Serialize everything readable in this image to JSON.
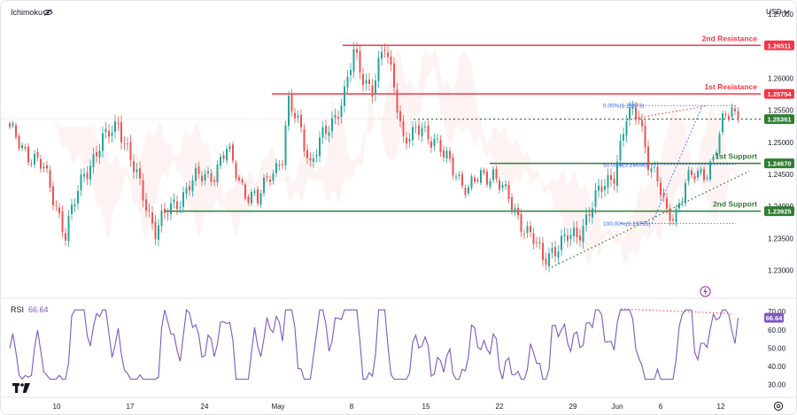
{
  "header": {
    "indicator": "Ichimoku",
    "currency": "USD"
  },
  "rsi_panel": {
    "name": "RSI",
    "value": "66.64",
    "value_badge": "66.64",
    "color": "#7e57c2"
  },
  "annotations": {
    "second_resistance": "2nd Resistance",
    "first_resistance": "1st Resistance",
    "first_support": "1st Support",
    "second_support": "2nd Support",
    "fib_0": "0.00%(1.25573)",
    "fib_50": "50.00%(1.24654)",
    "fib_100": "100.00%(1.23735)"
  },
  "colors": {
    "up": "#26a69a",
    "down": "#ef5350",
    "resistance": "#f23645",
    "support": "#2e7d32",
    "fib": "#2962ff",
    "rsi": "#7e57c2"
  },
  "chart_data": [
    {
      "type": "candlestick",
      "instrument_hint": "EUR/USD-like FX pair (not labeled)",
      "x_axis_labels": [
        "10",
        "17",
        "24",
        "May",
        "8",
        "15",
        "22",
        "29",
        "Jun",
        "6",
        "12"
      ],
      "y_axis_ticks": [
        1.23,
        1.235,
        1.24,
        1.245,
        1.25,
        1.255,
        1.26,
        1.265,
        1.27
      ],
      "y_axis_tick_labels": [
        "1.23000",
        "1.23500",
        "1.24000",
        "1.24500",
        "1.25000",
        "1.25500",
        "1.26000",
        "1.26500",
        "1.27000"
      ],
      "ylim": [
        1.2265,
        1.2715
      ],
      "levels": [
        {
          "name": "2nd Resistance",
          "value": 1.26511,
          "label": "1.26511",
          "kind": "resistance"
        },
        {
          "name": "1st Resistance",
          "value": 1.25754,
          "label": "1.25754",
          "kind": "resistance"
        },
        {
          "name": "current price",
          "value": 1.25361,
          "label": "1.25361",
          "kind": "price"
        },
        {
          "name": "1st Support",
          "value": 1.2467,
          "label": "1.24670",
          "kind": "support"
        },
        {
          "name": "2nd Support",
          "value": 1.23925,
          "label": "1.23925",
          "kind": "support"
        }
      ],
      "fibonacci": [
        {
          "level": "0.00%",
          "value": 1.25573
        },
        {
          "level": "50.00%",
          "value": 1.24654
        },
        {
          "level": "100.00%",
          "value": 1.23735
        }
      ],
      "price_path_keypoints": [
        [
          0,
          1.2515
        ],
        [
          6,
          1.2485
        ],
        [
          11,
          1.2455
        ],
        [
          15,
          1.2405
        ],
        [
          18,
          1.2355
        ],
        [
          24,
          1.2455
        ],
        [
          31,
          1.2505
        ],
        [
          35,
          1.2535
        ],
        [
          40,
          1.2455
        ],
        [
          44,
          1.2405
        ],
        [
          47,
          1.2365
        ],
        [
          52,
          1.2395
        ],
        [
          58,
          1.2435
        ],
        [
          62,
          1.2445
        ],
        [
          66,
          1.2455
        ],
        [
          70,
          1.2485
        ],
        [
          76,
          1.2425
        ],
        [
          80,
          1.2405
        ],
        [
          84,
          1.2455
        ],
        [
          88,
          1.2475
        ],
        [
          90,
          1.2555
        ],
        [
          94,
          1.2525
        ],
        [
          97,
          1.2465
        ],
        [
          101,
          1.2505
        ],
        [
          104,
          1.2535
        ],
        [
          108,
          1.2575
        ],
        [
          111,
          1.2635
        ],
        [
          114,
          1.2605
        ],
        [
          117,
          1.2585
        ],
        [
          121,
          1.2645
        ],
        [
          124,
          1.2595
        ],
        [
          127,
          1.2505
        ],
        [
          130,
          1.2505
        ],
        [
          133,
          1.2525
        ],
        [
          137,
          1.2505
        ],
        [
          140,
          1.2475
        ],
        [
          144,
          1.2455
        ],
        [
          148,
          1.2425
        ],
        [
          152,
          1.2445
        ],
        [
          156,
          1.2455
        ],
        [
          160,
          1.2415
        ],
        [
          164,
          1.2385
        ],
        [
          168,
          1.2355
        ],
        [
          172,
          1.2315
        ],
        [
          175,
          1.2335
        ],
        [
          179,
          1.2345
        ],
        [
          183,
          1.2355
        ],
        [
          187,
          1.2395
        ],
        [
          191,
          1.2425
        ],
        [
          195,
          1.2455
        ],
        [
          199,
          1.2535
        ],
        [
          203,
          1.2545
        ],
        [
          206,
          1.2475
        ],
        [
          209,
          1.2435
        ],
        [
          212,
          1.2385
        ],
        [
          215,
          1.2395
        ],
        [
          218,
          1.2435
        ],
        [
          221,
          1.2445
        ],
        [
          224,
          1.2455
        ],
        [
          227,
          1.2475
        ],
        [
          230,
          1.2525
        ],
        [
          233,
          1.2555
        ],
        [
          235,
          1.2536
        ]
      ],
      "rsi": {
        "value": 66.64,
        "y_axis_ticks": [
          30,
          40,
          50,
          60,
          70
        ],
        "y_axis_tick_labels": [
          "30.00",
          "40.00",
          "50.00",
          "60.00",
          "70.00"
        ],
        "ylim": [
          25,
          74
        ]
      }
    }
  ]
}
